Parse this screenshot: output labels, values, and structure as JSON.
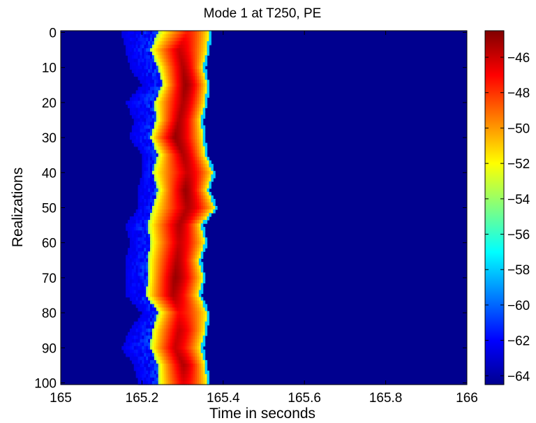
{
  "chart_data": {
    "type": "heatmap",
    "title": "Mode 1 at T250, PE",
    "xlabel": "Time in seconds",
    "ylabel": "Realizations",
    "xlim": [
      165,
      166
    ],
    "ylim": [
      0,
      101
    ],
    "y_reversed": true,
    "xticks": [
      165,
      165.2,
      165.4,
      165.6,
      165.8,
      166
    ],
    "xtick_labels": [
      "165",
      "165.2",
      "165.4",
      "165.6",
      "165.8",
      "166"
    ],
    "yticks": [
      0,
      10,
      20,
      30,
      40,
      50,
      60,
      70,
      80,
      90,
      100
    ],
    "ytick_labels": [
      "0",
      "10",
      "20",
      "30",
      "40",
      "50",
      "60",
      "70",
      "80",
      "90",
      "100"
    ],
    "colorbar": {
      "colormap": "jet",
      "clim": [
        -64.5,
        -44.5
      ],
      "ticks": [
        -64,
        -62,
        -60,
        -58,
        -56,
        -54,
        -52,
        -50,
        -48,
        -46
      ],
      "tick_labels": [
        "−64",
        "−62",
        "−60",
        "−58",
        "−56",
        "−54",
        "−52",
        "−50",
        "−48",
        "−46"
      ]
    },
    "background_level": -64.5,
    "pulse": {
      "description": "one bright arrival per realization",
      "time_window": [
        165.13,
        165.38
      ],
      "peak_time_range": [
        165.28,
        165.33
      ],
      "peak_level": -45
    },
    "rows": [
      {
        "realization": 0,
        "onset": 165.15,
        "rise": 165.24,
        "peak": 165.31,
        "end": 165.365,
        "peak_level": -47.5
      },
      {
        "realization": 5,
        "onset": 165.16,
        "rise": 165.22,
        "peak": 165.29,
        "end": 165.36,
        "peak_level": -46
      },
      {
        "realization": 10,
        "onset": 165.17,
        "rise": 165.24,
        "peak": 165.3,
        "end": 165.35,
        "peak_level": -45.5
      },
      {
        "realization": 15,
        "onset": 165.2,
        "rise": 165.25,
        "peak": 165.305,
        "end": 165.36,
        "peak_level": -45
      },
      {
        "realization": 20,
        "onset": 165.16,
        "rise": 165.23,
        "peak": 165.3,
        "end": 165.355,
        "peak_level": -45.5
      },
      {
        "realization": 25,
        "onset": 165.18,
        "rise": 165.235,
        "peak": 165.29,
        "end": 165.345,
        "peak_level": -45.5
      },
      {
        "realization": 30,
        "onset": 165.17,
        "rise": 165.22,
        "peak": 165.28,
        "end": 165.35,
        "peak_level": -45
      },
      {
        "realization": 35,
        "onset": 165.2,
        "rise": 165.24,
        "peak": 165.3,
        "end": 165.355,
        "peak_level": -45.5
      },
      {
        "realization": 40,
        "onset": 165.2,
        "rise": 165.225,
        "peak": 165.31,
        "end": 165.375,
        "peak_level": -46
      },
      {
        "realization": 45,
        "onset": 165.19,
        "rise": 165.24,
        "peak": 165.305,
        "end": 165.36,
        "peak_level": -45
      },
      {
        "realization": 50,
        "onset": 165.19,
        "rise": 165.225,
        "peak": 165.31,
        "end": 165.38,
        "peak_level": -45.5
      },
      {
        "realization": 55,
        "onset": 165.16,
        "rise": 165.215,
        "peak": 165.29,
        "end": 165.345,
        "peak_level": -45.5
      },
      {
        "realization": 60,
        "onset": 165.17,
        "rise": 165.22,
        "peak": 165.29,
        "end": 165.355,
        "peak_level": -46
      },
      {
        "realization": 65,
        "onset": 165.16,
        "rise": 165.215,
        "peak": 165.285,
        "end": 165.34,
        "peak_level": -45.5
      },
      {
        "realization": 70,
        "onset": 165.16,
        "rise": 165.215,
        "peak": 165.28,
        "end": 165.35,
        "peak_level": -45
      },
      {
        "realization": 75,
        "onset": 165.16,
        "rise": 165.21,
        "peak": 165.275,
        "end": 165.34,
        "peak_level": -45.5
      },
      {
        "realization": 80,
        "onset": 165.2,
        "rise": 165.24,
        "peak": 165.29,
        "end": 165.36,
        "peak_level": -47
      },
      {
        "realization": 85,
        "onset": 165.17,
        "rise": 165.225,
        "peak": 165.29,
        "end": 165.355,
        "peak_level": -46
      },
      {
        "realization": 90,
        "onset": 165.15,
        "rise": 165.22,
        "peak": 165.28,
        "end": 165.345,
        "peak_level": -46
      },
      {
        "realization": 95,
        "onset": 165.18,
        "rise": 165.24,
        "peak": 165.3,
        "end": 165.355,
        "peak_level": -45.5
      },
      {
        "realization": 100,
        "onset": 165.19,
        "rise": 165.24,
        "peak": 165.3,
        "end": 165.36,
        "peak_level": -46.5
      }
    ]
  }
}
